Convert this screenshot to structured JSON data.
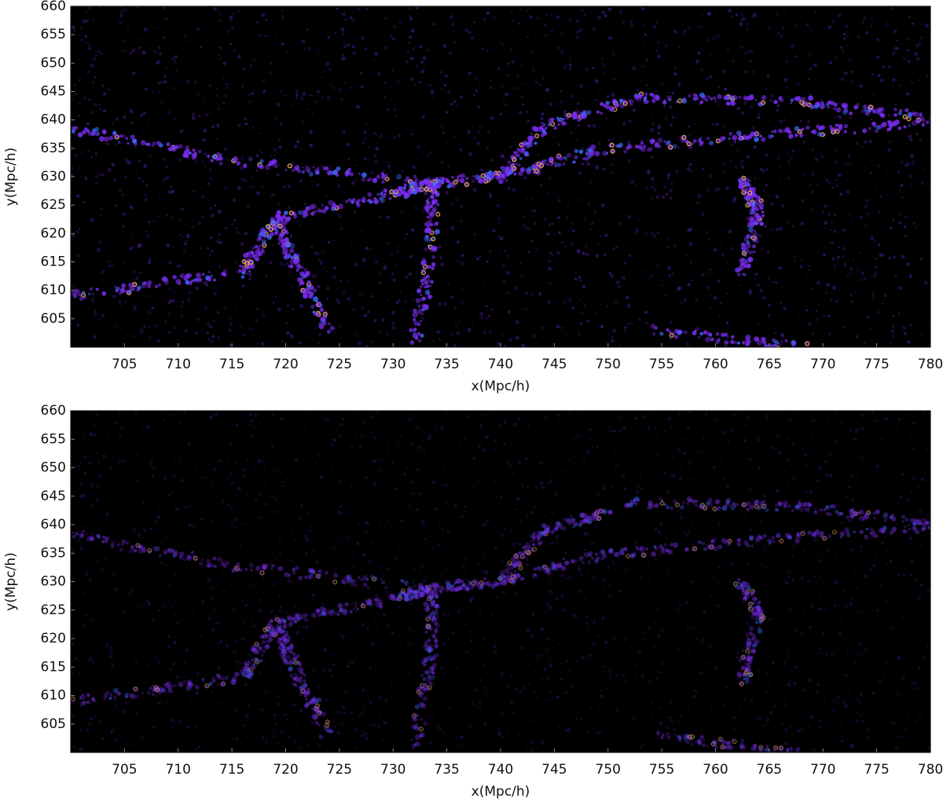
{
  "chart_data": [
    {
      "type": "heatmap",
      "xlabel": "x(Mpc/h)",
      "ylabel": "y(Mpc/h)",
      "xlim": [
        700,
        780
      ],
      "ylim": [
        600,
        660
      ],
      "xticks": [
        705,
        710,
        715,
        720,
        725,
        730,
        735,
        740,
        745,
        750,
        755,
        760,
        765,
        770,
        775,
        780
      ],
      "yticks": [
        605,
        610,
        615,
        620,
        625,
        630,
        635,
        640,
        645,
        650,
        655,
        660
      ]
    },
    {
      "type": "heatmap",
      "xlabel": "x(Mpc/h)",
      "ylabel": "y(Mpc/h)",
      "xlim": [
        700,
        780
      ],
      "ylim": [
        600,
        660
      ],
      "xticks": [
        705,
        710,
        715,
        720,
        725,
        730,
        735,
        740,
        745,
        750,
        755,
        760,
        765,
        770,
        775,
        780
      ],
      "yticks": [
        605,
        610,
        615,
        620,
        625,
        630,
        635,
        640,
        645,
        650,
        655,
        660
      ]
    }
  ]
}
